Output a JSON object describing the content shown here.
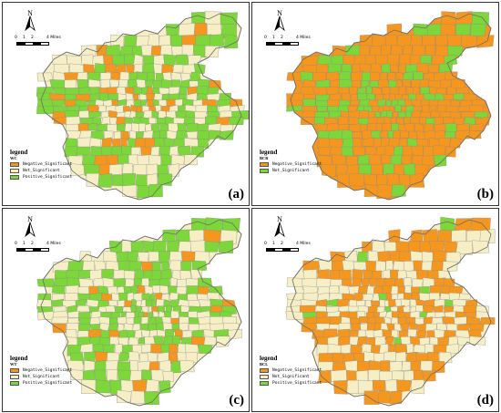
{
  "colors": {
    "negative": "#f5971e",
    "not_significant": "#f6efc6",
    "positive": "#7dd63a",
    "boundary": "#8a8a8a"
  },
  "panels": [
    {
      "label": "(a)",
      "north": "N",
      "scale_ticks": [
        "0",
        "1",
        "2",
        "4 Miles"
      ],
      "legend_title": "legend",
      "legend_var": "WC",
      "legend_items": [
        {
          "name": "Negative_Significant",
          "color": "#f5971e"
        },
        {
          "name": "Not_Significant",
          "color": "#f6efc6"
        },
        {
          "name": "Positive_Significant",
          "color": "#7dd63a"
        }
      ],
      "mix": {
        "negative": 0.16,
        "positive": 0.42,
        "not_significant": 0.42
      }
    },
    {
      "label": "(b)",
      "north": "N",
      "scale_ticks": [
        "0",
        "1",
        "2",
        "4 Miles"
      ],
      "legend_title": "legend",
      "legend_var": "BCR",
      "legend_items": [
        {
          "name": "Negative_Significant",
          "color": "#f5971e"
        },
        {
          "name": "Not_Significant",
          "color": "#7dd63a"
        }
      ],
      "mix": {
        "negative": 0.72,
        "positive": 0.28,
        "not_significant": 0.0
      }
    },
    {
      "label": "(c)",
      "north": "N",
      "scale_ticks": [
        "0",
        "1",
        "2",
        "4 Miles"
      ],
      "legend_title": "legend",
      "legend_var": "WT",
      "legend_items": [
        {
          "name": "Negative_Significant",
          "color": "#f5971e"
        },
        {
          "name": "Not_Significant",
          "color": "#f6efc6"
        },
        {
          "name": "Positive_Significant",
          "color": "#7dd63a"
        }
      ],
      "mix": {
        "negative": 0.07,
        "positive": 0.43,
        "not_significant": 0.5
      }
    },
    {
      "label": "(d)",
      "north": "N",
      "scale_ticks": [
        "0",
        "1",
        "2",
        "4 Miles"
      ],
      "legend_title": "legend",
      "legend_var": "BCL",
      "legend_items": [
        {
          "name": "Negative_Significant",
          "color": "#f5971e"
        },
        {
          "name": "Not_Significant",
          "color": "#f6efc6"
        },
        {
          "name": "Positive_Significant",
          "color": "#7dd63a"
        }
      ],
      "mix": {
        "negative": 0.48,
        "positive": 0.04,
        "not_significant": 0.48
      }
    }
  ]
}
